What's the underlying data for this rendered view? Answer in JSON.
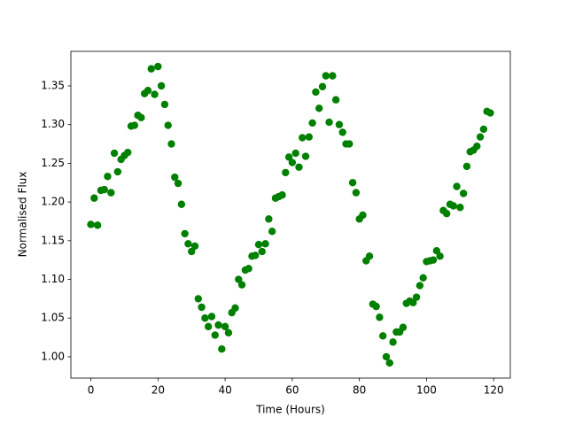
{
  "chart_data": {
    "type": "scatter",
    "xlabel": "Time (Hours)",
    "ylabel": "Normalised Flux",
    "color": "#008000",
    "xlim": [
      -5.95,
      124.95
    ],
    "ylim": [
      0.9725,
      1.3946
    ],
    "xticks": [
      0,
      20,
      40,
      60,
      80,
      100,
      120
    ],
    "yticks": [
      {
        "value": 1,
        "label": "1.00"
      },
      1.05,
      {
        "value": 1.1,
        "label": "1.10"
      },
      1.15,
      {
        "value": 1.2,
        "label": "1.20"
      },
      1.25,
      {
        "value": 1.3,
        "label": "1.30"
      },
      1.35
    ],
    "x": [
      0,
      1,
      2,
      3,
      4,
      5,
      6,
      7,
      8,
      9,
      10,
      11,
      12,
      13,
      14,
      15,
      16,
      17,
      18,
      19,
      20,
      21,
      22,
      23,
      24,
      25,
      26,
      27,
      28,
      29,
      30,
      31,
      32,
      33,
      34,
      35,
      36,
      37,
      38,
      39,
      40,
      41,
      42,
      43,
      44,
      45,
      46,
      47,
      48,
      49,
      50,
      51,
      52,
      53,
      54,
      55,
      56,
      57,
      58,
      59,
      60,
      61,
      62,
      63,
      64,
      65,
      66,
      67,
      68,
      69,
      70,
      71,
      72,
      73,
      74,
      75,
      76,
      77,
      78,
      79,
      80,
      81,
      82,
      83,
      84,
      85,
      86,
      87,
      88,
      89,
      90,
      91,
      92,
      93,
      94,
      95,
      96,
      97,
      98,
      99,
      100,
      101,
      102,
      103,
      104,
      105,
      106,
      107,
      108,
      109,
      110,
      111,
      112,
      113,
      114,
      115,
      116,
      117,
      118,
      119
    ],
    "y": [
      1.171,
      1.205,
      1.17,
      1.215,
      1.216,
      1.233,
      1.212,
      1.263,
      1.239,
      1.255,
      1.26,
      1.264,
      1.298,
      1.299,
      1.312,
      1.309,
      1.34,
      1.344,
      1.372,
      1.339,
      1.375,
      1.35,
      1.326,
      1.299,
      1.275,
      1.232,
      1.224,
      1.197,
      1.159,
      1.146,
      1.136,
      1.143,
      1.075,
      1.064,
      1.05,
      1.039,
      1.052,
      1.028,
      1.041,
      1.01,
      1.039,
      1.031,
      1.057,
      1.063,
      1.1,
      1.093,
      1.112,
      1.114,
      1.13,
      1.131,
      1.145,
      1.136,
      1.146,
      1.178,
      1.162,
      1.205,
      1.207,
      1.209,
      1.238,
      1.258,
      1.251,
      1.263,
      1.245,
      1.283,
      1.259,
      1.284,
      1.302,
      1.342,
      1.321,
      1.349,
      1.363,
      1.303,
      1.363,
      1.332,
      1.3,
      1.29,
      1.275,
      1.275,
      1.225,
      1.212,
      1.178,
      1.183,
      1.124,
      1.13,
      1.068,
      1.065,
      1.051,
      1.027,
      1.0,
      0.992,
      1.019,
      1.032,
      1.032,
      1.038,
      1.069,
      1.072,
      1.07,
      1.077,
      1.092,
      1.102,
      1.123,
      1.124,
      1.125,
      1.137,
      1.13,
      1.189,
      1.185,
      1.197,
      1.195,
      1.22,
      1.193,
      1.211,
      1.246,
      1.265,
      1.267,
      1.272,
      1.284,
      1.294,
      1.317,
      1.315
    ]
  }
}
